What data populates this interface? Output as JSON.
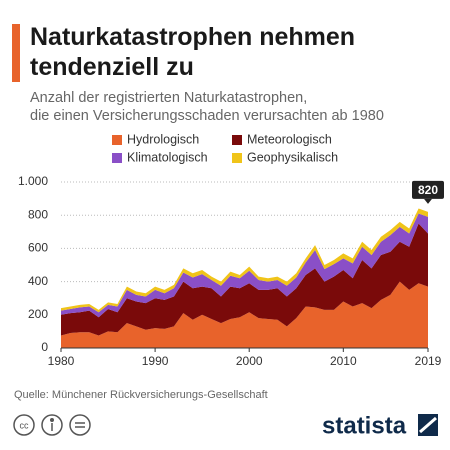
{
  "chart_data": {
    "type": "stacked_area",
    "title": "Naturkatastrophen nehmen tendenziell zu",
    "subtitle": [
      "Anzahl der registrierten Naturkatastrophen,",
      "die einen Versicherungsschaden verursachten ab 1980"
    ],
    "x": [
      1980,
      1981,
      1982,
      1983,
      1984,
      1985,
      1986,
      1987,
      1988,
      1989,
      1990,
      1991,
      1992,
      1993,
      1994,
      1995,
      1996,
      1997,
      1998,
      1999,
      2000,
      2001,
      2002,
      2003,
      2004,
      2005,
      2006,
      2007,
      2008,
      2009,
      2010,
      2011,
      2012,
      2013,
      2014,
      2015,
      2016,
      2017,
      2018,
      2019
    ],
    "series": [
      {
        "name": "Hydrologisch",
        "color": "#e8632b",
        "values": [
          75,
          90,
          95,
          95,
          75,
          100,
          95,
          150,
          130,
          110,
          120,
          115,
          130,
          210,
          170,
          200,
          175,
          150,
          175,
          185,
          215,
          180,
          175,
          170,
          130,
          180,
          250,
          245,
          230,
          230,
          280,
          250,
          270,
          240,
          290,
          320,
          400,
          350,
          390,
          370
        ]
      },
      {
        "name": "Meteorologisch",
        "color": "#7a0a0a",
        "values": [
          125,
          120,
          120,
          130,
          110,
          135,
          120,
          150,
          150,
          160,
          180,
          175,
          180,
          190,
          190,
          170,
          185,
          160,
          195,
          175,
          175,
          170,
          175,
          190,
          180,
          180,
          190,
          235,
          170,
          200,
          190,
          170,
          260,
          240,
          270,
          260,
          240,
          260,
          360,
          320
        ]
      },
      {
        "name": "Klimatologisch",
        "color": "#8a4fc7",
        "values": [
          25,
          25,
          30,
          25,
          30,
          25,
          35,
          50,
          40,
          40,
          50,
          40,
          50,
          55,
          65,
          75,
          50,
          65,
          65,
          60,
          75,
          60,
          50,
          50,
          65,
          65,
          75,
          110,
          75,
          75,
          70,
          90,
          80,
          80,
          80,
          100,
          90,
          80,
          60,
          100
        ]
      },
      {
        "name": "Geophysikalisch",
        "color": "#f0c419",
        "values": [
          15,
          15,
          15,
          15,
          15,
          15,
          15,
          20,
          20,
          20,
          20,
          20,
          20,
          25,
          25,
          25,
          20,
          25,
          25,
          20,
          25,
          20,
          20,
          20,
          25,
          25,
          25,
          30,
          25,
          25,
          30,
          30,
          30,
          30,
          30,
          30,
          30,
          30,
          30,
          30
        ]
      }
    ],
    "xlim": [
      1980,
      2019
    ],
    "xticks": [
      1980,
      1990,
      2000,
      2010,
      2019
    ],
    "ylim": [
      0,
      1000
    ],
    "yticks": [
      0,
      200,
      400,
      600,
      800,
      {
        "value": 1000,
        "label": "1.000"
      }
    ],
    "grid": true,
    "annotations": [
      {
        "x": 2019,
        "y": 820,
        "label": "820"
      }
    ],
    "source": "Quelle: Münchener Rückversicherungs-Gesellschaft",
    "brand": "statista"
  }
}
